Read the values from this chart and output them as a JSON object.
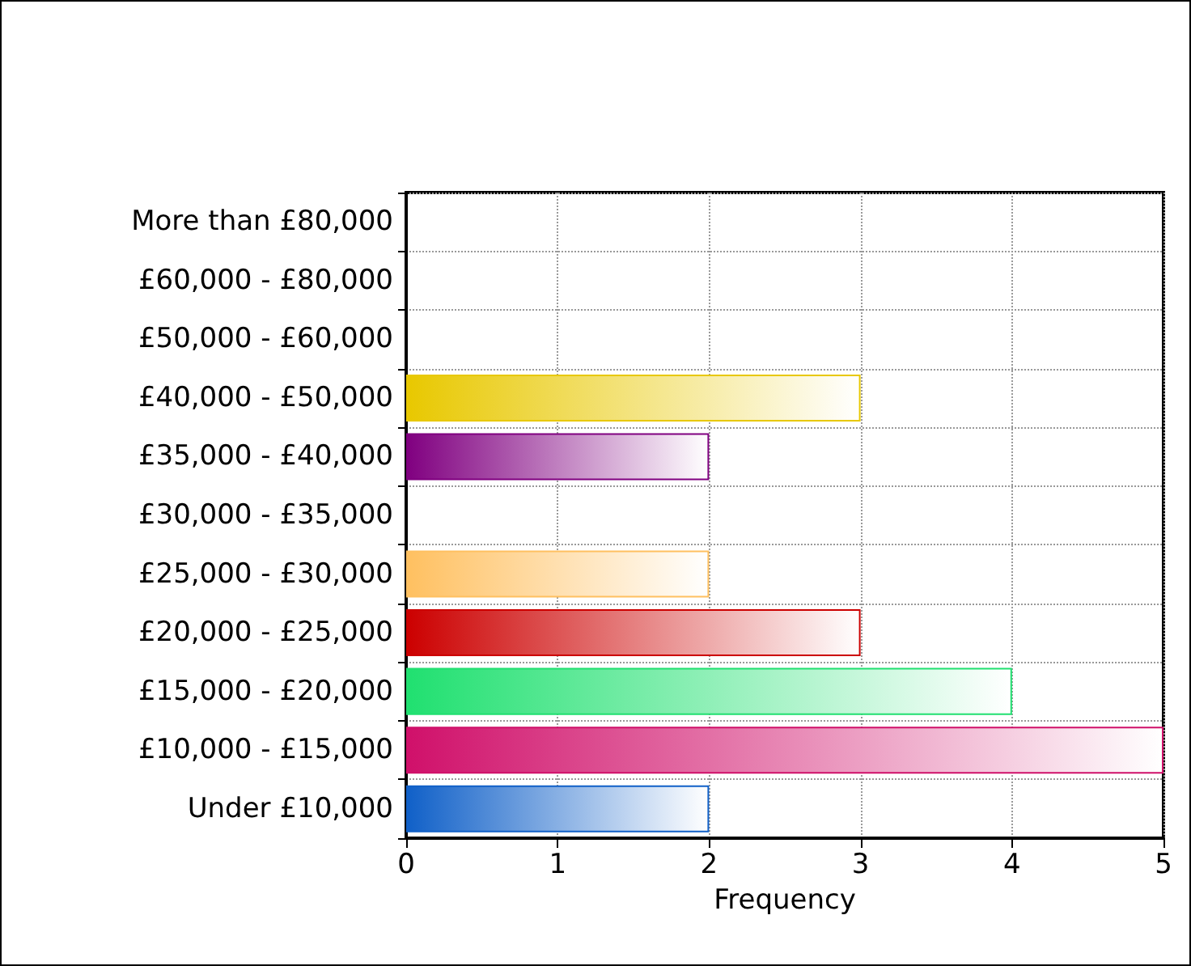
{
  "chart_data": {
    "type": "bar",
    "orientation": "horizontal",
    "xlabel": "Frequency",
    "categories": [
      "More than £80,000",
      "£60,000 - £80,000",
      "£50,000 - £60,000",
      "£40,000 - £50,000",
      "£35,000 - £40,000",
      "£30,000 - £35,000",
      "£25,000 - £30,000",
      "£20,000 - £25,000",
      "£15,000 - £20,000",
      "£10,000 - £15,000",
      "Under £10,000"
    ],
    "values": [
      0,
      0,
      0,
      3,
      2,
      0,
      2,
      3,
      4,
      5,
      2
    ],
    "colors": [
      null,
      null,
      null,
      "#e8c800",
      "#800080",
      null,
      "#ffc060",
      "#cc0000",
      "#20e070",
      "#d0106a",
      "#1060c8"
    ],
    "xlim": [
      0,
      5
    ],
    "xticks": [
      0,
      1,
      2,
      3,
      4,
      5
    ],
    "grid": true
  }
}
